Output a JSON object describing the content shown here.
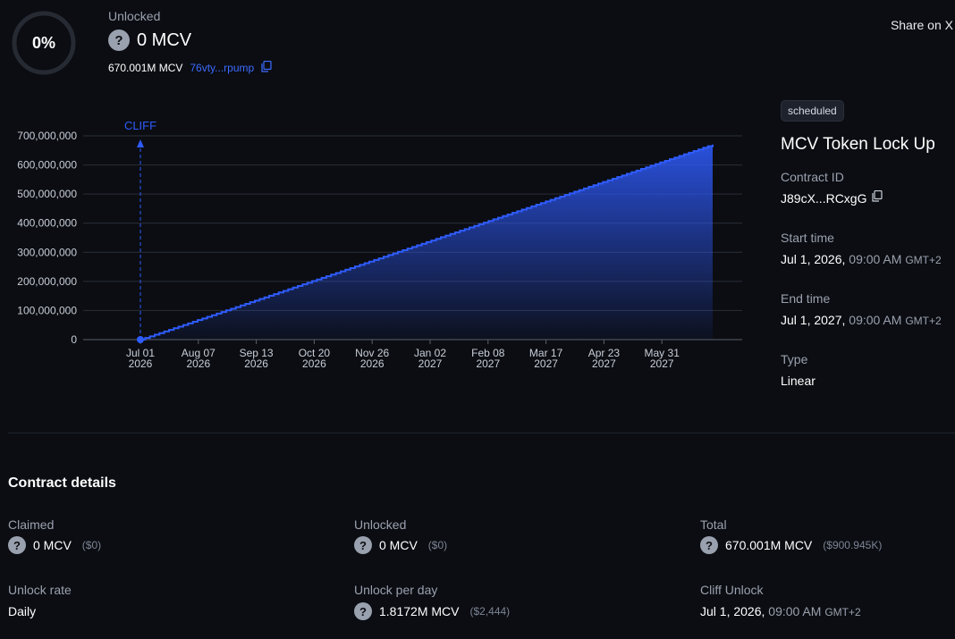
{
  "progress": {
    "percent_label": "0%",
    "fraction": 0
  },
  "header": {
    "unlocked_label": "Unlocked",
    "unlocked_value": "0 MCV",
    "total_amount": "670.001M MCV",
    "token_address": "76vty...rpump",
    "share_label": "Share on X"
  },
  "info": {
    "status_badge": "scheduled",
    "title": "MCV Token Lock Up",
    "contract_id_label": "Contract ID",
    "contract_id": "J89cX...RCxgG",
    "start_label": "Start time",
    "start_date": "Jul 1, 2026,",
    "start_time": "09:00 AM",
    "start_tz": "GMT+2",
    "end_label": "End time",
    "end_date": "Jul 1, 2027,",
    "end_time": "09:00 AM",
    "end_tz": "GMT+2",
    "type_label": "Type",
    "type_value": "Linear"
  },
  "chart_data": {
    "type": "area",
    "x_ticks": [
      "Jul 01|2026",
      "Aug 07|2026",
      "Sep 13|2026",
      "Oct 20|2026",
      "Nov 26|2026",
      "Jan 02|2027",
      "Feb 08|2027",
      "Mar 17|2027",
      "Apr 23|2027",
      "May 31|2027"
    ],
    "y_ticks": [
      "700,000,000",
      "600,000,000",
      "500,000,000",
      "400,000,000",
      "300,000,000",
      "200,000,000",
      "100,000,000",
      "0"
    ],
    "ylim": [
      0,
      700000000
    ],
    "x_start": "2026-07-01",
    "x_end": "2027-07-01",
    "series": [
      {
        "values": [
          {
            "x": "2026-07-01",
            "y": 0
          },
          {
            "x": "2027-07-01",
            "y": 670001000
          }
        ]
      }
    ],
    "cliff_label": "CLIFF",
    "cliff_x": "2026-07-01",
    "accent": "#2f5cff",
    "grid": true
  },
  "details": {
    "section_title": "Contract details",
    "claimed_label": "Claimed",
    "claimed_value": "0 MCV",
    "claimed_usd": "($0)",
    "unlocked_label": "Unlocked",
    "unlocked_value": "0 MCV",
    "unlocked_usd": "($0)",
    "total_label": "Total",
    "total_value": "670.001M MCV",
    "total_usd": "($900.945K)",
    "rate_label": "Unlock rate",
    "rate_value": "Daily",
    "per_day_label": "Unlock per day",
    "per_day_value": "1.8172M MCV",
    "per_day_usd": "($2,444)",
    "cliff_label": "Cliff Unlock",
    "cliff_date": "Jul 1, 2026,",
    "cliff_time": "09:00 AM",
    "cliff_tz": "GMT+2"
  }
}
